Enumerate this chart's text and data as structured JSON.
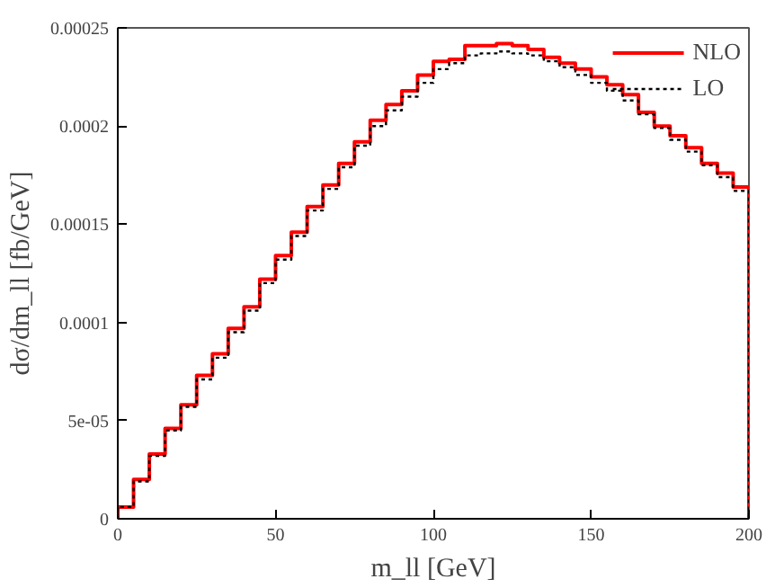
{
  "chart_data": {
    "type": "histogram",
    "xlabel": "m_ll [GeV]",
    "ylabel": "dσ/dm_ll [fb/GeV]",
    "bins": [
      0,
      5,
      10,
      15,
      20,
      25,
      30,
      35,
      40,
      45,
      50,
      55,
      60,
      65,
      70,
      75,
      80,
      85,
      90,
      95,
      100,
      105,
      110,
      115,
      120,
      125,
      130,
      135,
      140,
      145,
      150,
      155,
      160,
      165,
      170,
      175,
      180,
      185,
      190,
      195,
      200
    ],
    "series": [
      {
        "name": "NLO",
        "color": "#ff0000",
        "line_style": "solid",
        "values": [
          6e-06,
          2e-05,
          3.3e-05,
          4.6e-05,
          5.8e-05,
          7.3e-05,
          8.4e-05,
          9.7e-05,
          0.000108,
          0.000122,
          0.000134,
          0.000146,
          0.000159,
          0.00017,
          0.000181,
          0.000192,
          0.000203,
          0.000211,
          0.000218,
          0.000226,
          0.000233,
          0.000234,
          0.000241,
          0.000241,
          0.000242,
          0.000241,
          0.000239,
          0.000235,
          0.000232,
          0.000229,
          0.000225,
          0.000221,
          0.000216,
          0.000207,
          0.0002,
          0.000195,
          0.000189,
          0.000181,
          0.000176,
          0.000169
        ]
      },
      {
        "name": "LO",
        "color": "#000000",
        "line_style": "dotted",
        "values": [
          6e-06,
          1.9e-05,
          3.2e-05,
          4.5e-05,
          5.7e-05,
          7.1e-05,
          8.2e-05,
          9.5e-05,
          0.000106,
          0.00012,
          0.000132,
          0.000144,
          0.000157,
          0.000168,
          0.000179,
          0.00019,
          0.0002,
          0.000208,
          0.000215,
          0.000222,
          0.000229,
          0.000232,
          0.000236,
          0.000237,
          0.000238,
          0.000237,
          0.000236,
          0.000233,
          0.00023,
          0.000226,
          0.000222,
          0.000218,
          0.000213,
          0.000206,
          0.000199,
          0.000193,
          0.000187,
          0.00018,
          0.000174,
          0.000167
        ]
      }
    ],
    "xlim": [
      0,
      200
    ],
    "xticks": [
      0,
      50,
      100,
      150,
      200
    ],
    "ylim": [
      0,
      0.00025
    ],
    "yticks": [
      0,
      {
        "value": 5e-05,
        "label": "5e-05"
      },
      0.0001,
      0.00015,
      0.0002,
      0.00025
    ],
    "legend": "top right",
    "grid": false
  }
}
